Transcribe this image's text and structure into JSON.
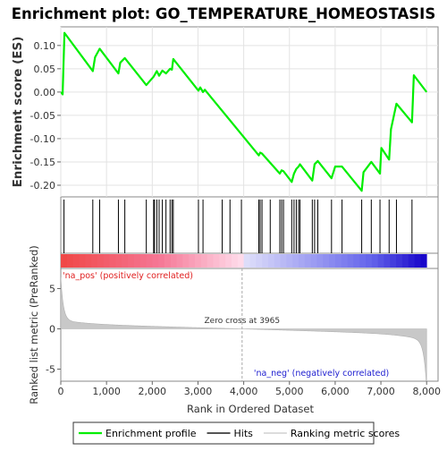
{
  "chart_data": {
    "type": "line",
    "title": "Enrichment plot: GO_TEMPERATURE_HOMEOSTASIS",
    "enrichment_panel": {
      "ylabel": "Enrichment score (ES)",
      "ylim": [
        -0.225,
        0.14
      ],
      "yticks": [
        0.1,
        0.05,
        0.0,
        -0.05,
        -0.1,
        -0.15,
        -0.2
      ],
      "ytick_labels": [
        "0.10",
        "0.05",
        "0.00",
        "-0.05",
        "-0.10",
        "-0.15",
        "-0.20"
      ],
      "series": [
        {
          "name": "Enrichment profile",
          "color": "#00ee00",
          "x": [
            0,
            40,
            80,
            700,
            750,
            850,
            1260,
            1300,
            1400,
            1870,
            2030,
            2100,
            2150,
            2220,
            2300,
            2390,
            2430,
            2460,
            3010,
            3050,
            3110,
            3150,
            4330,
            4360,
            4400,
            4790,
            4830,
            4870,
            5050,
            5100,
            5150,
            5200,
            5230,
            5500,
            5550,
            5620,
            5920,
            6000,
            6150,
            6580,
            6620,
            6790,
            6980,
            7010,
            7180,
            7220,
            7340,
            7680,
            7720,
            8000
          ],
          "y": [
            0.0,
            -0.005,
            0.127,
            0.045,
            0.075,
            0.093,
            0.04,
            0.063,
            0.073,
            0.015,
            0.033,
            0.045,
            0.035,
            0.046,
            0.04,
            0.05,
            0.048,
            0.071,
            0.003,
            0.01,
            0.0,
            0.005,
            -0.136,
            -0.13,
            -0.132,
            -0.175,
            -0.168,
            -0.17,
            -0.193,
            -0.175,
            -0.165,
            -0.16,
            -0.155,
            -0.19,
            -0.155,
            -0.148,
            -0.185,
            -0.16,
            -0.16,
            -0.212,
            -0.172,
            -0.15,
            -0.175,
            -0.12,
            -0.145,
            -0.08,
            -0.025,
            -0.065,
            0.036,
            0.0
          ]
        }
      ]
    },
    "hits": [
      70,
      700,
      850,
      1260,
      1400,
      1870,
      2030,
      2050,
      2100,
      2150,
      2220,
      2300,
      2390,
      2430,
      2460,
      3010,
      3110,
      3530,
      3700,
      3950,
      4330,
      4360,
      4400,
      4580,
      4790,
      4830,
      4870,
      5050,
      5100,
      5150,
      5200,
      5230,
      5500,
      5550,
      5620,
      5920,
      6150,
      6580,
      6790,
      6980,
      7180,
      7340,
      7680
    ],
    "rank_metric_panel": {
      "ylabel": "Ranked list metric (PreRanked)",
      "ylim": [
        -6.5,
        7.5
      ],
      "yticks": [
        5,
        0,
        -5
      ],
      "ytick_labels": [
        "5",
        "0",
        "-5"
      ],
      "zero_cross_label": "Zero cross at 3965",
      "zero_cross_rank": 3965,
      "positive_label": "'na_pos' (positively correlated)",
      "negative_label": "'na_neg' (negatively correlated)"
    },
    "xlabel": "Rank in Ordered Dataset",
    "xlim": [
      0,
      8250
    ],
    "xticks": [
      0,
      1000,
      2000,
      3000,
      4000,
      5000,
      6000,
      7000,
      8000
    ],
    "xtick_labels": [
      "0",
      "1,000",
      "2,000",
      "3,000",
      "4,000",
      "5,000",
      "6,000",
      "7,000",
      "8,000"
    ],
    "n_genes": 8000,
    "legend": {
      "placement": "bottom",
      "entries": [
        {
          "label": "Enrichment profile",
          "color": "#00ee00"
        },
        {
          "label": "Hits",
          "color": "#555555"
        },
        {
          "label": "Ranking metric scores",
          "color": "#c8c8c8"
        }
      ]
    }
  }
}
